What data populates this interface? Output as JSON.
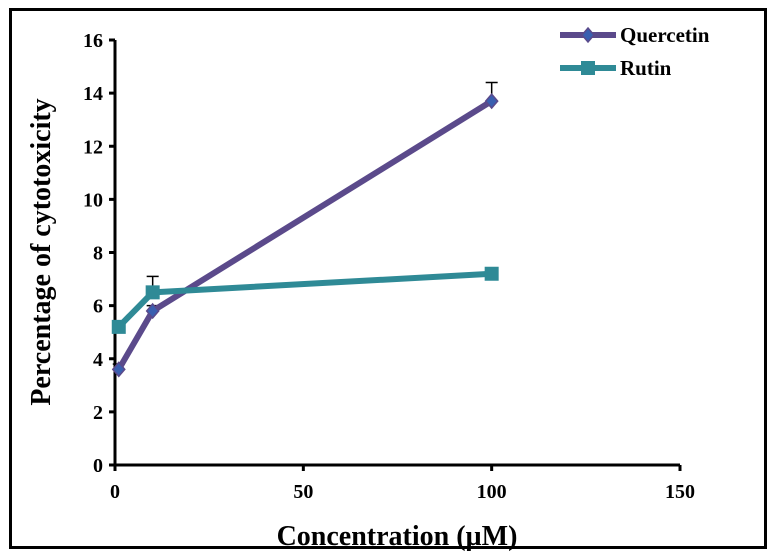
{
  "chart_data": {
    "type": "line",
    "title": "",
    "xlabel": "Concentration (µM)",
    "ylabel": "Percentage of cytotoxicity",
    "xlim": [
      0,
      150
    ],
    "ylim": [
      0,
      16
    ],
    "xticks": [
      0,
      50,
      100,
      150
    ],
    "yticks": [
      0,
      2,
      4,
      6,
      8,
      10,
      12,
      14,
      16
    ],
    "grid": false,
    "legend_position": "top-right",
    "series": [
      {
        "name": "Quercetin",
        "color": "#5b4a8b",
        "marker": "diamond",
        "x": [
          1,
          10,
          100
        ],
        "y": [
          3.6,
          5.8,
          13.7
        ],
        "error": [
          0.2,
          0.2,
          0.7
        ]
      },
      {
        "name": "Rutin",
        "color": "#2f8a96",
        "marker": "square",
        "x": [
          1,
          10,
          100
        ],
        "y": [
          5.2,
          6.5,
          7.2
        ],
        "error": [
          0.2,
          0.6,
          0.2
        ]
      }
    ]
  }
}
